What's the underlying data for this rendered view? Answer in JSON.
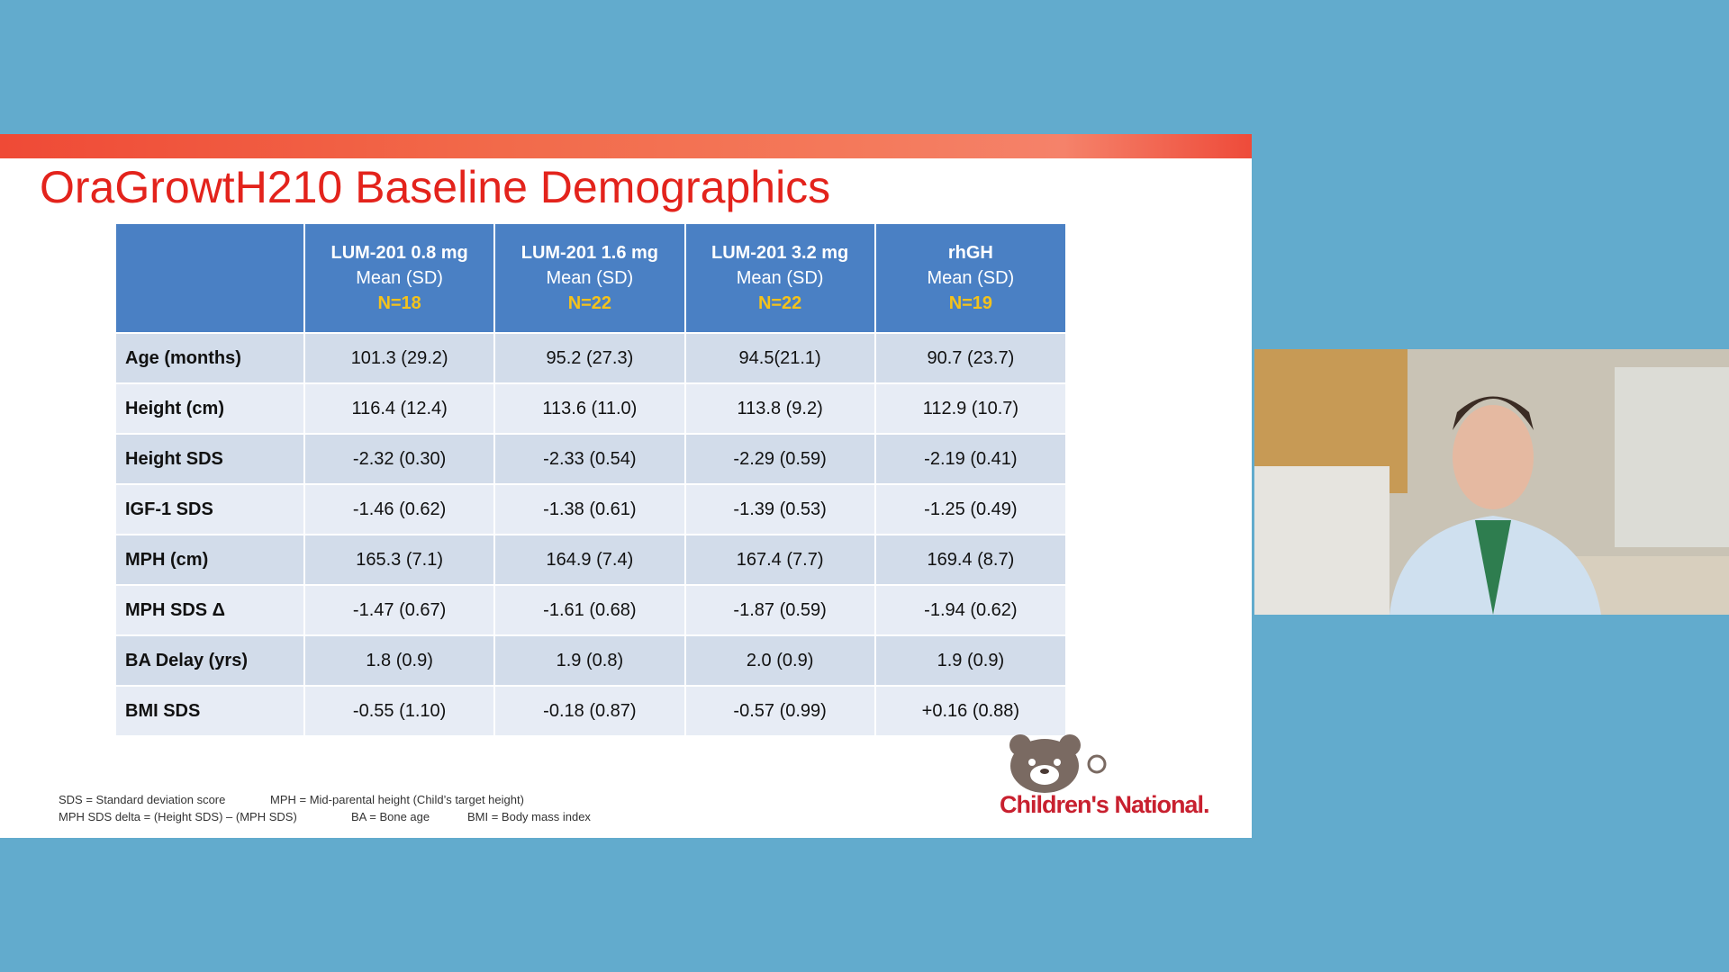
{
  "slide": {
    "title": "OraGrowtH210 Baseline Demographics",
    "table": {
      "columns": [
        {
          "name": "LUM-201 0.8 mg",
          "stat": "Mean (SD)",
          "n": "N=18"
        },
        {
          "name": "LUM-201 1.6 mg",
          "stat": "Mean (SD)",
          "n": "N=22"
        },
        {
          "name": "LUM-201 3.2 mg",
          "stat": "Mean (SD)",
          "n": "N=22"
        },
        {
          "name": "rhGH",
          "stat": "Mean (SD)",
          "n": "N=19"
        }
      ],
      "rows": [
        [
          "Age (months)",
          "101.3 (29.2)",
          "95.2 (27.3)",
          "94.5(21.1)",
          "90.7 (23.7)"
        ],
        [
          "Height (cm)",
          "116.4 (12.4)",
          "113.6 (11.0)",
          "113.8 (9.2)",
          "112.9 (10.7)"
        ],
        [
          "Height SDS",
          "-2.32 (0.30)",
          "-2.33 (0.54)",
          "-2.29 (0.59)",
          "-2.19 (0.41)"
        ],
        [
          "IGF-1 SDS",
          "-1.46 (0.62)",
          "-1.38 (0.61)",
          "-1.39 (0.53)",
          "-1.25 (0.49)"
        ],
        [
          "MPH (cm)",
          "165.3 (7.1)",
          "164.9 (7.4)",
          "167.4 (7.7)",
          "169.4 (8.7)"
        ],
        [
          "MPH SDS Δ",
          "-1.47 (0.67)",
          "-1.61 (0.68)",
          "-1.87 (0.59)",
          "-1.94 (0.62)"
        ],
        [
          "BA Delay (yrs)",
          "1.8 (0.9)",
          "1.9 (0.8)",
          "2.0 (0.9)",
          "1.9 (0.9)"
        ],
        [
          "BMI SDS",
          "-0.55 (1.10)",
          "-0.18 (0.87)",
          "-0.57 (0.99)",
          "+0.16 (0.88)"
        ]
      ]
    },
    "footnotes": [
      "SDS = Standard deviation score",
      "MPH = Mid-parental height (Child’s target height)",
      "MPH SDS delta = (Height SDS) – (MPH SDS)",
      "BA = Bone age",
      "BMI = Body mass index"
    ],
    "logo": "Children's National."
  }
}
